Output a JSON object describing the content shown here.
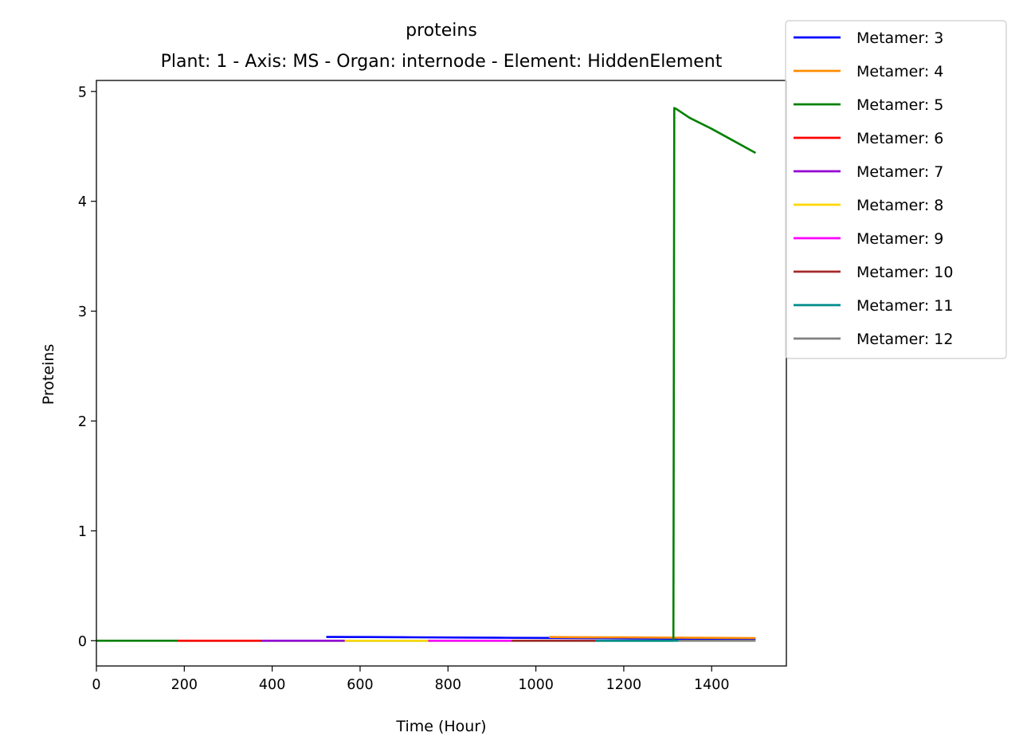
{
  "chart_data": {
    "type": "line",
    "title": "proteins",
    "subtitle": "Plant: 1 - Axis: MS - Organ: internode - Element: HiddenElement",
    "xlabel": "Time (Hour)",
    "ylabel": "Proteins",
    "xlim": [
      0,
      1570
    ],
    "ylim": [
      -0.23,
      5.1
    ],
    "xticks": [
      0,
      200,
      400,
      600,
      800,
      1000,
      1200,
      1400
    ],
    "yticks": [
      0,
      1,
      2,
      3,
      4,
      5
    ],
    "grid": false,
    "legend_position": "outside top-right",
    "series": [
      {
        "name": "Metamer: 3",
        "color": "#0000ff",
        "x": [
          523,
          620,
          720,
          820,
          920,
          1020,
          1120,
          1220,
          1320,
          1420,
          1500
        ],
        "y": [
          0.034,
          0.033,
          0.031,
          0.029,
          0.027,
          0.025,
          0.023,
          0.021,
          0.019,
          0.018,
          0.016
        ]
      },
      {
        "name": "Metamer: 4",
        "color": "#ff8c00",
        "x": [
          1030,
          1100,
          1200,
          1300,
          1400,
          1500
        ],
        "y": [
          0.033,
          0.032,
          0.03,
          0.028,
          0.026,
          0.024
        ]
      },
      {
        "name": "Metamer: 5",
        "color": "#008000",
        "x": [
          0,
          100,
          185,
          1313,
          1315,
          1320,
          1350,
          1400,
          1450,
          1500
        ],
        "y": [
          0.0,
          0.0,
          0.0,
          0.0,
          4.85,
          4.84,
          4.76,
          4.66,
          4.55,
          4.44
        ]
      },
      {
        "name": "Metamer: 6",
        "color": "#ff0000",
        "x": [
          185,
          280,
          375
        ],
        "y": [
          0.0,
          0.0,
          0.0
        ]
      },
      {
        "name": "Metamer: 7",
        "color": "#9400d3",
        "x": [
          375,
          470,
          565
        ],
        "y": [
          0.0,
          0.0,
          0.0
        ]
      },
      {
        "name": "Metamer: 8",
        "color": "#ffd700",
        "x": [
          565,
          660,
          755
        ],
        "y": [
          0.0,
          0.0,
          0.0
        ]
      },
      {
        "name": "Metamer: 9",
        "color": "#ff00ff",
        "x": [
          755,
          850,
          945
        ],
        "y": [
          0.0,
          0.0,
          0.0
        ]
      },
      {
        "name": "Metamer: 10",
        "color": "#a52a2a",
        "x": [
          945,
          1040,
          1135
        ],
        "y": [
          0.0,
          0.0,
          0.0
        ]
      },
      {
        "name": "Metamer: 11",
        "color": "#008b8b",
        "x": [
          1135,
          1230,
          1325
        ],
        "y": [
          0.0,
          0.0,
          0.0
        ]
      },
      {
        "name": "Metamer: 12",
        "color": "#808080",
        "x": [
          1325,
          1410,
          1500
        ],
        "y": [
          0.0,
          0.0,
          0.0
        ]
      }
    ]
  }
}
